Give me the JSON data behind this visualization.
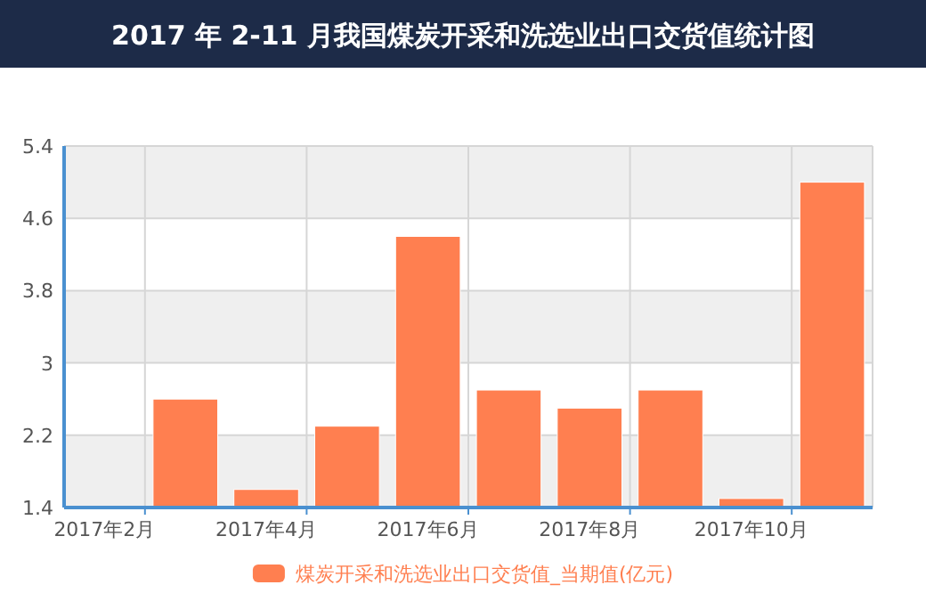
{
  "chart_data": {
    "type": "bar",
    "title": "2017 年 2-11 月我国煤炭开采和洗选业出口交货值统计图",
    "categories": [
      "2017年2月",
      null,
      "2017年4月",
      null,
      "2017年6月",
      null,
      "2017年8月",
      null,
      "2017年10月",
      null
    ],
    "series": [
      {
        "name": "煤炭开采和洗选业出口交货值_当期值(亿元)",
        "color": "#ff7f50",
        "values": [
          null,
          2.6,
          1.6,
          2.3,
          4.4,
          2.7,
          2.5,
          2.7,
          1.5,
          5.0
        ]
      }
    ],
    "ylim": [
      1.4,
      5.4
    ],
    "yticks": [
      1.4,
      2.2,
      3,
      3.8,
      4.6,
      5.4
    ],
    "grid": true,
    "legend": "bottom"
  }
}
